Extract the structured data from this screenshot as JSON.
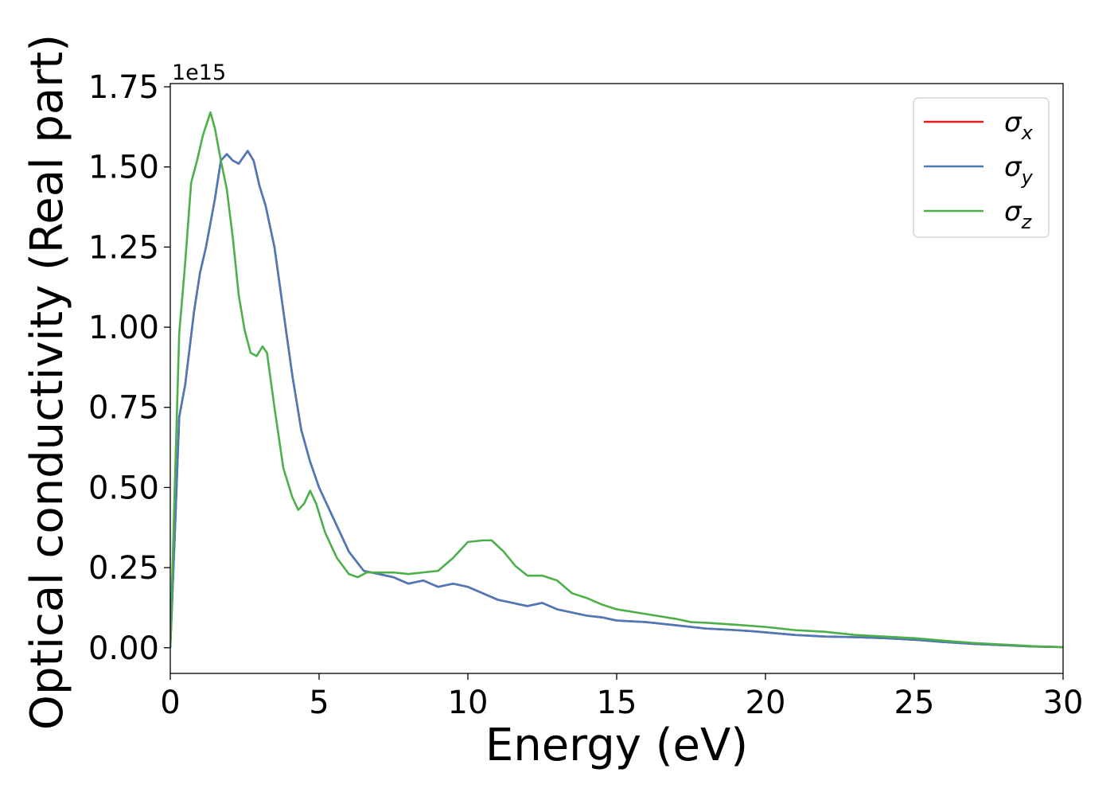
{
  "chart_data": {
    "type": "line",
    "title": "",
    "xlabel": "Energy (eV)",
    "ylabel": "Optical conductivity (Real part)",
    "y_offset_label": "1e15",
    "y_scale": 1000000000000000.0,
    "xlim": [
      0,
      30
    ],
    "ylim": [
      -0.08,
      1.76
    ],
    "x_ticks": [
      0,
      5,
      10,
      15,
      20,
      25,
      30
    ],
    "x_tick_labels": [
      "0",
      "5",
      "10",
      "15",
      "20",
      "25",
      "30"
    ],
    "y_ticks": [
      0.0,
      0.25,
      0.5,
      0.75,
      1.0,
      1.25,
      1.5,
      1.75
    ],
    "y_tick_labels": [
      "0.00",
      "0.25",
      "0.50",
      "0.75",
      "1.00",
      "1.25",
      "1.50",
      "1.75"
    ],
    "grid": false,
    "legend_position": "top-right",
    "series": [
      {
        "name": "σ",
        "subscript": "x",
        "color": "#e41a1c",
        "x": [
          0,
          0.15,
          0.3,
          0.5,
          0.8,
          1.0,
          1.2,
          1.5,
          1.7,
          1.9,
          2.1,
          2.3,
          2.6,
          2.8,
          3.0,
          3.2,
          3.5,
          3.8,
          4.1,
          4.4,
          4.7,
          5.0,
          5.5,
          6.0,
          6.5,
          7.0,
          7.5,
          8.0,
          8.5,
          9.0,
          9.5,
          10.0,
          10.5,
          11.0,
          11.5,
          12.0,
          12.5,
          13.0,
          13.5,
          14.0,
          14.5,
          15.0,
          16.0,
          17.0,
          18.0,
          19.0,
          19.5,
          20.0,
          21.0,
          22.0,
          23.0,
          24.0,
          25.0,
          26.0,
          27.0,
          28.0,
          29.0,
          30.0
        ],
        "values": [
          0.0,
          0.35,
          0.72,
          0.82,
          1.05,
          1.17,
          1.25,
          1.4,
          1.52,
          1.54,
          1.52,
          1.51,
          1.55,
          1.52,
          1.44,
          1.38,
          1.25,
          1.05,
          0.85,
          0.68,
          0.58,
          0.5,
          0.4,
          0.3,
          0.24,
          0.23,
          0.22,
          0.2,
          0.21,
          0.19,
          0.2,
          0.19,
          0.17,
          0.15,
          0.14,
          0.13,
          0.14,
          0.12,
          0.11,
          0.1,
          0.095,
          0.085,
          0.08,
          0.07,
          0.06,
          0.055,
          0.052,
          0.048,
          0.04,
          0.035,
          0.033,
          0.03,
          0.025,
          0.018,
          0.012,
          0.008,
          0.004,
          0.002
        ]
      },
      {
        "name": "σ",
        "subscript": "y",
        "color": "#4a7ab8",
        "x": [
          0,
          0.15,
          0.3,
          0.5,
          0.8,
          1.0,
          1.2,
          1.5,
          1.7,
          1.9,
          2.1,
          2.3,
          2.6,
          2.8,
          3.0,
          3.2,
          3.5,
          3.8,
          4.1,
          4.4,
          4.7,
          5.0,
          5.5,
          6.0,
          6.5,
          7.0,
          7.5,
          8.0,
          8.5,
          9.0,
          9.5,
          10.0,
          10.5,
          11.0,
          11.5,
          12.0,
          12.5,
          13.0,
          13.5,
          14.0,
          14.5,
          15.0,
          16.0,
          17.0,
          18.0,
          19.0,
          19.5,
          20.0,
          21.0,
          22.0,
          23.0,
          24.0,
          25.0,
          26.0,
          27.0,
          28.0,
          29.0,
          30.0
        ],
        "values": [
          0.0,
          0.35,
          0.72,
          0.82,
          1.05,
          1.17,
          1.25,
          1.4,
          1.52,
          1.54,
          1.52,
          1.51,
          1.55,
          1.52,
          1.44,
          1.38,
          1.25,
          1.05,
          0.85,
          0.68,
          0.58,
          0.5,
          0.4,
          0.3,
          0.24,
          0.23,
          0.22,
          0.2,
          0.21,
          0.19,
          0.2,
          0.19,
          0.17,
          0.15,
          0.14,
          0.13,
          0.14,
          0.12,
          0.11,
          0.1,
          0.095,
          0.085,
          0.08,
          0.07,
          0.06,
          0.055,
          0.052,
          0.048,
          0.04,
          0.035,
          0.033,
          0.03,
          0.025,
          0.018,
          0.012,
          0.008,
          0.004,
          0.002
        ]
      },
      {
        "name": "σ",
        "subscript": "z",
        "color": "#4daf4a",
        "x": [
          0,
          0.15,
          0.3,
          0.5,
          0.7,
          0.9,
          1.1,
          1.35,
          1.5,
          1.7,
          1.9,
          2.1,
          2.3,
          2.5,
          2.7,
          2.9,
          3.1,
          3.25,
          3.5,
          3.8,
          4.1,
          4.3,
          4.5,
          4.7,
          4.9,
          5.2,
          5.6,
          6.0,
          6.3,
          6.6,
          7.0,
          7.5,
          8.0,
          8.5,
          9.0,
          9.5,
          10.0,
          10.5,
          10.8,
          11.2,
          11.6,
          12.0,
          12.5,
          13.0,
          13.5,
          14.0,
          14.5,
          15.0,
          16.0,
          17.0,
          17.5,
          18.0,
          19.0,
          20.0,
          21.0,
          22.0,
          23.0,
          24.0,
          25.0,
          26.0,
          27.0,
          28.0,
          29.0,
          30.0
        ],
        "values": [
          0.0,
          0.5,
          0.98,
          1.2,
          1.45,
          1.52,
          1.6,
          1.67,
          1.62,
          1.52,
          1.43,
          1.28,
          1.1,
          0.99,
          0.92,
          0.91,
          0.94,
          0.92,
          0.75,
          0.56,
          0.47,
          0.43,
          0.45,
          0.49,
          0.45,
          0.36,
          0.28,
          0.23,
          0.22,
          0.235,
          0.235,
          0.235,
          0.23,
          0.235,
          0.24,
          0.28,
          0.33,
          0.335,
          0.335,
          0.3,
          0.255,
          0.225,
          0.225,
          0.21,
          0.17,
          0.155,
          0.135,
          0.12,
          0.105,
          0.09,
          0.08,
          0.078,
          0.072,
          0.065,
          0.055,
          0.05,
          0.04,
          0.035,
          0.03,
          0.022,
          0.015,
          0.01,
          0.005,
          0.002
        ]
      }
    ]
  }
}
